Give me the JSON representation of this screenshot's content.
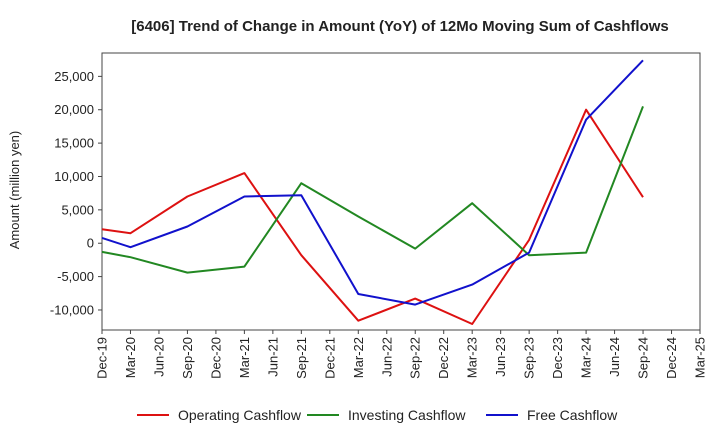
{
  "chart_data": {
    "type": "line",
    "title": "[6406]  Trend of Change in Amount (YoY) of 12Mo Moving Sum of Cashflows",
    "xlabel": "",
    "ylabel": "Amount (million yen)",
    "ylim": [
      -13000,
      28500
    ],
    "yticks": [
      25000,
      20000,
      15000,
      10000,
      5000,
      0,
      -5000,
      -10000
    ],
    "ytick_labels": [
      "25,000",
      "20,000",
      "15,000",
      "10,000",
      "5,000",
      "0",
      "-5,000",
      "-10,000"
    ],
    "categories": [
      "Dec-19",
      "Mar-20",
      "Jun-20",
      "Sep-20",
      "Dec-20",
      "Mar-21",
      "Jun-21",
      "Sep-21",
      "Dec-21",
      "Mar-22",
      "Jun-22",
      "Sep-22",
      "Dec-22",
      "Mar-23",
      "Jun-23",
      "Sep-23",
      "Dec-23",
      "Mar-24",
      "Jun-24",
      "Sep-24",
      "Dec-24",
      "Mar-25"
    ],
    "grid": true,
    "legend_position": "bottom",
    "series": [
      {
        "name": "Operating Cashflow",
        "color": "#dd1111",
        "values": [
          2100,
          1500,
          null,
          7000,
          null,
          10500,
          null,
          -1800,
          null,
          -11600,
          null,
          -8300,
          null,
          -12100,
          null,
          500,
          null,
          20000,
          null,
          6900,
          null,
          null
        ]
      },
      {
        "name": "Investing Cashflow",
        "color": "#228822",
        "values": [
          -1300,
          -2100,
          null,
          -4400,
          null,
          -3500,
          null,
          9000,
          null,
          4000,
          null,
          -800,
          null,
          6000,
          null,
          -1800,
          null,
          -1400,
          null,
          20500,
          null,
          null
        ]
      },
      {
        "name": "Free Cashflow",
        "color": "#1111cc",
        "values": [
          800,
          -600,
          null,
          2500,
          null,
          7000,
          null,
          7200,
          null,
          -7600,
          null,
          -9200,
          null,
          -6200,
          null,
          -1400,
          null,
          18500,
          null,
          27400,
          null,
          null
        ]
      }
    ]
  }
}
